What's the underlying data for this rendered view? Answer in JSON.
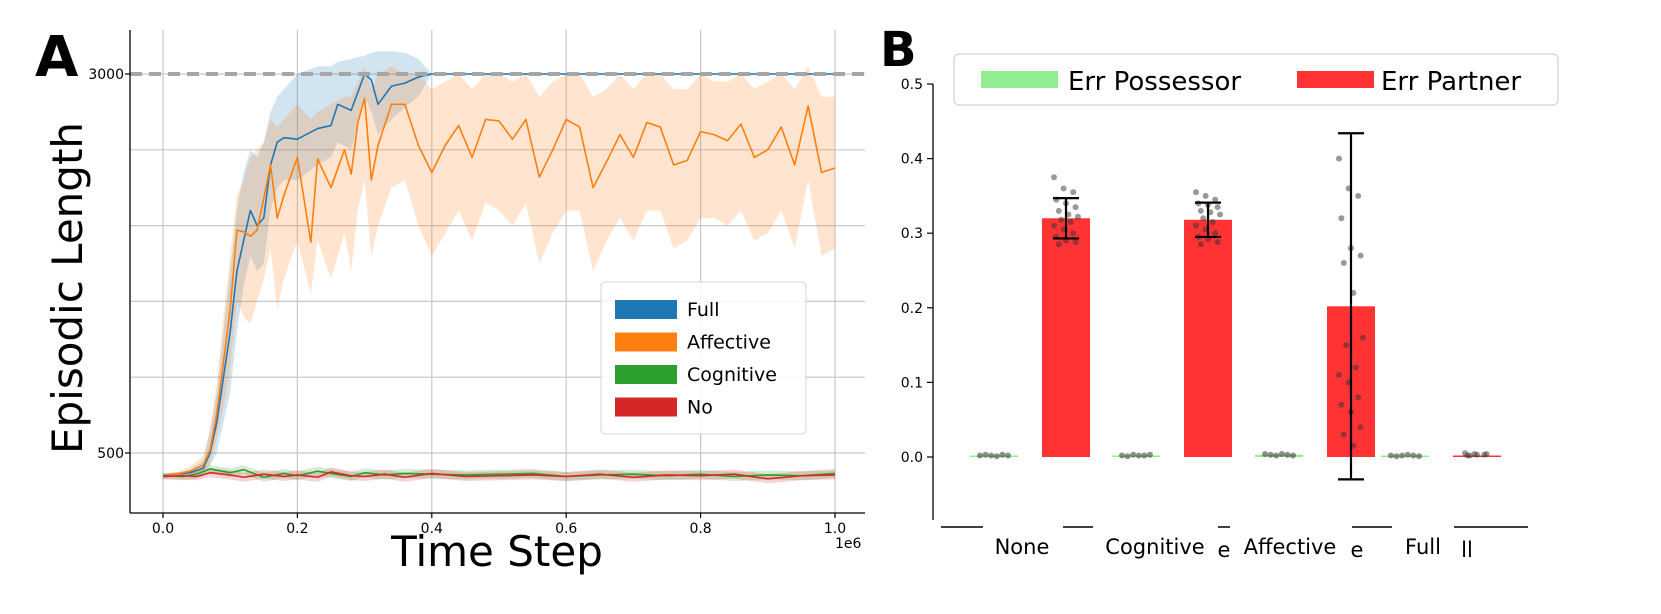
{
  "chart_data": [
    {
      "panel": "A",
      "type": "line",
      "xlabel": "Time Step",
      "ylabel": "Episodic Length",
      "x_multiplier_label": "1e6",
      "xlim": [
        -0.05,
        1.04
      ],
      "ylim": [
        120,
        3290
      ],
      "xticks": [
        "0.0",
        "0.2",
        "0.4",
        "0.6",
        "0.8",
        "1.0"
      ],
      "yticks": [
        "500",
        "3000"
      ],
      "ygrid": [
        500,
        1000,
        1500,
        2000,
        2500,
        3000
      ],
      "reference_line": {
        "y": 3000,
        "style": "dashed",
        "color": "#a6a6a6"
      },
      "series": [
        {
          "name": "Full",
          "color": "#1f77b4",
          "x": [
            0.0,
            0.02,
            0.04,
            0.06,
            0.07,
            0.08,
            0.09,
            0.1,
            0.11,
            0.12,
            0.13,
            0.14,
            0.15,
            0.16,
            0.17,
            0.18,
            0.2,
            0.23,
            0.25,
            0.26,
            0.28,
            0.3,
            0.31,
            0.32,
            0.34,
            0.36,
            0.38,
            0.4,
            0.5,
            0.6,
            0.7,
            0.8,
            0.9,
            1.0
          ],
          "mean": [
            350,
            360,
            370,
            400,
            500,
            700,
            1000,
            1300,
            1700,
            1900,
            2100,
            2000,
            2050,
            2400,
            2550,
            2580,
            2570,
            2640,
            2660,
            2800,
            2760,
            3000,
            2960,
            2800,
            2920,
            2940,
            2980,
            3000,
            3000,
            3000,
            3000,
            3000,
            3000,
            3000
          ],
          "upper": [
            360,
            370,
            390,
            450,
            650,
            900,
            1300,
            1700,
            2100,
            2350,
            2500,
            2450,
            2550,
            2750,
            2850,
            2900,
            3000,
            3050,
            3050,
            3080,
            3100,
            3120,
            3140,
            3150,
            3150,
            3140,
            3100,
            3000,
            3000,
            3000,
            3000,
            3000,
            3000,
            3000
          ],
          "lower": [
            340,
            350,
            360,
            380,
            420,
            500,
            700,
            900,
            1300,
            1600,
            1800,
            1700,
            1750,
            2100,
            2250,
            2300,
            2300,
            2400,
            2450,
            2550,
            2500,
            2850,
            2750,
            2600,
            2700,
            2780,
            2850,
            3000,
            3000,
            3000,
            3000,
            3000,
            3000,
            3000
          ]
        },
        {
          "name": "Affective",
          "color": "#ff7f0e",
          "x": [
            0.0,
            0.02,
            0.04,
            0.06,
            0.07,
            0.08,
            0.09,
            0.1,
            0.11,
            0.12,
            0.13,
            0.14,
            0.15,
            0.16,
            0.17,
            0.18,
            0.2,
            0.22,
            0.23,
            0.25,
            0.27,
            0.28,
            0.29,
            0.3,
            0.31,
            0.32,
            0.34,
            0.36,
            0.38,
            0.4,
            0.42,
            0.44,
            0.46,
            0.48,
            0.5,
            0.52,
            0.54,
            0.56,
            0.58,
            0.6,
            0.62,
            0.64,
            0.66,
            0.68,
            0.7,
            0.72,
            0.74,
            0.76,
            0.78,
            0.8,
            0.82,
            0.84,
            0.86,
            0.88,
            0.9,
            0.92,
            0.94,
            0.96,
            0.98,
            1.0
          ],
          "mean": [
            350,
            360,
            380,
            420,
            520,
            760,
            1100,
            1450,
            1970,
            1960,
            1930,
            1970,
            2180,
            2400,
            2050,
            2200,
            2450,
            1890,
            2440,
            2250,
            2500,
            2340,
            2680,
            2840,
            2300,
            2530,
            2800,
            2800,
            2530,
            2350,
            2530,
            2660,
            2450,
            2700,
            2690,
            2570,
            2700,
            2320,
            2500,
            2700,
            2650,
            2250,
            2420,
            2600,
            2450,
            2680,
            2650,
            2400,
            2430,
            2620,
            2600,
            2560,
            2670,
            2450,
            2500,
            2650,
            2400,
            2790,
            2350,
            2380
          ],
          "upper": [
            360,
            375,
            410,
            480,
            650,
            950,
            1400,
            1800,
            2200,
            2300,
            2450,
            2500,
            2550,
            2700,
            2650,
            2700,
            2800,
            2700,
            2750,
            2800,
            2850,
            2850,
            2950,
            3050,
            2900,
            3000,
            3050,
            3000,
            3000,
            2900,
            2950,
            3000,
            2900,
            3000,
            3000,
            2950,
            3000,
            2850,
            2950,
            3000,
            3000,
            2850,
            2900,
            3000,
            2900,
            3000,
            3000,
            2900,
            2900,
            3000,
            2950,
            2950,
            3000,
            2900,
            2950,
            3000,
            2900,
            3050,
            2850,
            2850
          ],
          "lower": [
            340,
            345,
            355,
            380,
            420,
            600,
            800,
            1050,
            1500,
            1400,
            1350,
            1500,
            1650,
            1850,
            1450,
            1650,
            1900,
            1550,
            1900,
            1650,
            1950,
            1700,
            2100,
            2300,
            1800,
            2000,
            2250,
            2300,
            2000,
            1800,
            1950,
            2100,
            1900,
            2150,
            2100,
            2000,
            2150,
            1750,
            1950,
            2100,
            2100,
            1700,
            1900,
            2050,
            1900,
            2100,
            2100,
            1850,
            1900,
            2050,
            2050,
            2000,
            2100,
            1900,
            1950,
            2100,
            1850,
            2300,
            1800,
            1850
          ]
        },
        {
          "name": "Cognitive",
          "color": "#2ca02c",
          "x": [
            0.0,
            0.03,
            0.05,
            0.07,
            0.1,
            0.12,
            0.15,
            0.18,
            0.2,
            0.23,
            0.25,
            0.28,
            0.3,
            0.33,
            0.36,
            0.4,
            0.45,
            0.5,
            0.55,
            0.6,
            0.65,
            0.7,
            0.75,
            0.8,
            0.85,
            0.9,
            0.95,
            1.0
          ],
          "mean": [
            350,
            345,
            360,
            395,
            370,
            390,
            340,
            365,
            350,
            380,
            365,
            345,
            370,
            355,
            365,
            360,
            355,
            360,
            365,
            345,
            355,
            360,
            350,
            360,
            345,
            355,
            350,
            365
          ],
          "upper": [
            370,
            370,
            390,
            420,
            400,
            420,
            370,
            395,
            380,
            410,
            395,
            375,
            400,
            385,
            395,
            390,
            385,
            390,
            395,
            375,
            385,
            390,
            380,
            390,
            375,
            385,
            380,
            395
          ],
          "lower": [
            330,
            320,
            330,
            370,
            340,
            360,
            310,
            335,
            320,
            350,
            335,
            315,
            340,
            325,
            335,
            330,
            325,
            330,
            335,
            315,
            325,
            330,
            320,
            330,
            315,
            325,
            320,
            335
          ]
        },
        {
          "name": "No",
          "color": "#d62728",
          "x": [
            0.0,
            0.03,
            0.05,
            0.07,
            0.1,
            0.12,
            0.15,
            0.18,
            0.2,
            0.23,
            0.25,
            0.28,
            0.3,
            0.33,
            0.36,
            0.4,
            0.45,
            0.5,
            0.55,
            0.6,
            0.65,
            0.7,
            0.75,
            0.8,
            0.85,
            0.9,
            0.95,
            1.0
          ],
          "mean": [
            345,
            350,
            345,
            370,
            355,
            340,
            360,
            345,
            355,
            340,
            375,
            350,
            345,
            360,
            340,
            365,
            345,
            350,
            355,
            345,
            360,
            340,
            355,
            350,
            360,
            330,
            350,
            355
          ],
          "upper": [
            365,
            375,
            375,
            400,
            385,
            370,
            390,
            375,
            385,
            370,
            405,
            380,
            375,
            390,
            370,
            395,
            375,
            380,
            385,
            375,
            390,
            370,
            385,
            380,
            390,
            360,
            380,
            385
          ],
          "lower": [
            325,
            325,
            320,
            340,
            325,
            310,
            330,
            315,
            325,
            310,
            345,
            320,
            315,
            330,
            310,
            335,
            315,
            320,
            325,
            315,
            330,
            310,
            325,
            320,
            330,
            300,
            320,
            325
          ]
        }
      ],
      "legend": {
        "placement": "lower-right",
        "entries": [
          "Full",
          "Affective",
          "Cognitive",
          "No"
        ]
      }
    },
    {
      "panel": "B",
      "type": "bar",
      "ylim": [
        -0.08,
        0.52
      ],
      "yticks": [
        "0.0",
        "0.1",
        "0.2",
        "0.3",
        "0.4",
        "0.5"
      ],
      "categories": [
        "None",
        "Cognitive",
        "Affective",
        "Full"
      ],
      "category_overflow_text": [
        "",
        "e",
        "e",
        "ll"
      ],
      "series": [
        {
          "name": "Err Possessor",
          "color": "#90ee90",
          "values": [
            0.002,
            0.002,
            0.003,
            0.002
          ]
        },
        {
          "name": "Err Partner",
          "color": "#ff3333",
          "values": [
            0.32,
            0.318,
            0.202,
            0.002
          ],
          "error": [
            0.027,
            0.023,
            0.232,
            0.0
          ]
        }
      ],
      "points": {
        "Err Possessor": [
          [
            0.002,
            0.003,
            0.002,
            0.001,
            0.003,
            0.002
          ],
          [
            0.002,
            0.001,
            0.003,
            0.002,
            0.002,
            0.003
          ],
          [
            0.004,
            0.003,
            0.002,
            0.004,
            0.003,
            0.002
          ],
          [
            0.002,
            0.001,
            0.002,
            0.003,
            0.002,
            0.001
          ]
        ],
        "Err Partner": [
          [
            0.375,
            0.36,
            0.355,
            0.345,
            0.34,
            0.335,
            0.33,
            0.325,
            0.322,
            0.318,
            0.315,
            0.31,
            0.305,
            0.3,
            0.295,
            0.29,
            0.288,
            0.285
          ],
          [
            0.355,
            0.35,
            0.345,
            0.34,
            0.338,
            0.335,
            0.33,
            0.328,
            0.325,
            0.32,
            0.315,
            0.31,
            0.305,
            0.3,
            0.295,
            0.292,
            0.288,
            0.285
          ],
          [
            0.4,
            0.36,
            0.35,
            0.32,
            0.28,
            0.27,
            0.26,
            0.22,
            0.16,
            0.15,
            0.12,
            0.11,
            0.1,
            0.08,
            0.07,
            0.06,
            0.04,
            0.03,
            0.015
          ],
          [
            0.005,
            0.004,
            0.003,
            0.002,
            0.003,
            0.004,
            0.002
          ]
        ]
      },
      "legend": {
        "placement": "top",
        "entries": [
          "Err Possessor",
          "Err Partner"
        ]
      }
    }
  ],
  "panel_labels": {
    "a": "A",
    "b": "B"
  }
}
